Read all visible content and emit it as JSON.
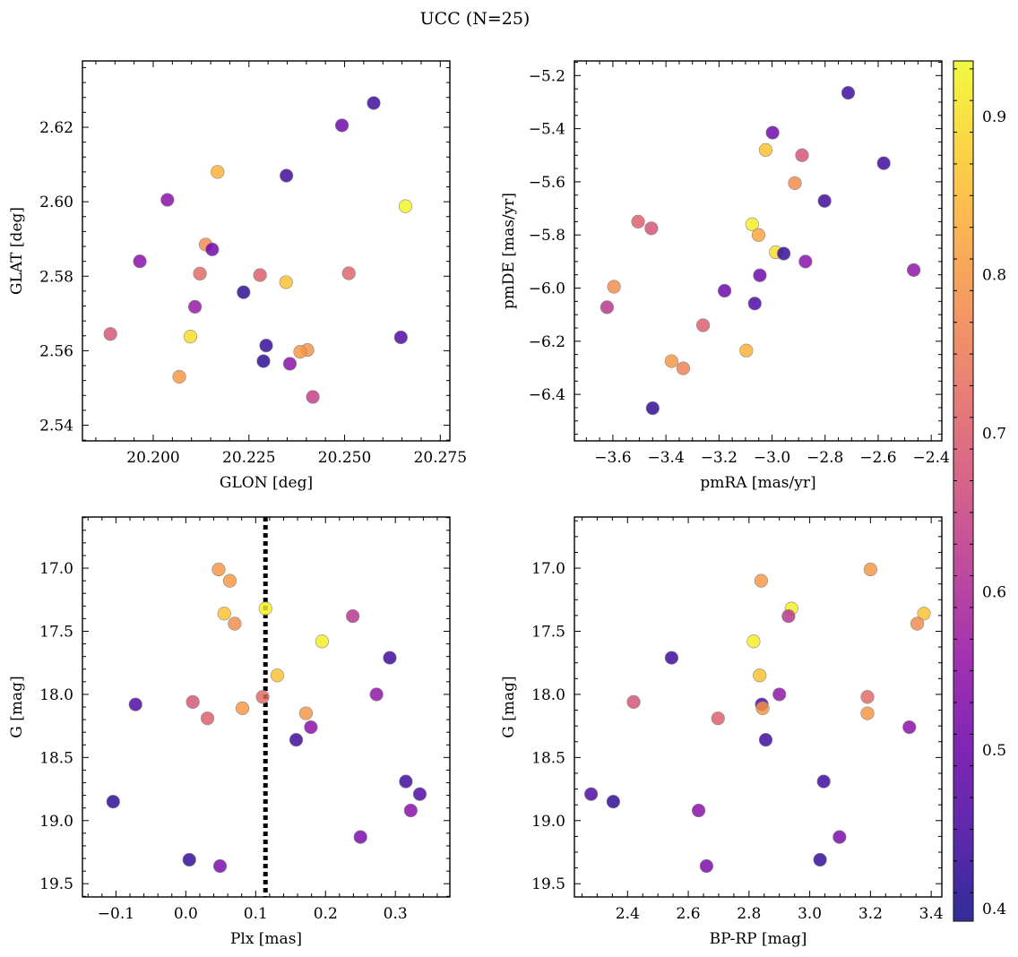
{
  "title": "UCC (N=25)",
  "chart_data": [
    {
      "type": "scatter",
      "panel": "top-left",
      "xlabel": "GLON [deg]",
      "ylabel": "GLAT [deg]",
      "xlim": [
        20.1815,
        20.2775
      ],
      "ylim": [
        2.5358,
        2.6378
      ],
      "xticks": [
        20.2,
        20.225,
        20.25,
        20.275
      ],
      "xtick_labels": [
        "20.200",
        "20.225",
        "20.250",
        "20.275"
      ],
      "yticks": [
        2.54,
        2.56,
        2.58,
        2.6,
        2.62
      ],
      "ytick_labels": [
        "2.54",
        "2.56",
        "2.58",
        "2.60",
        "2.62"
      ],
      "x": [
        20.2576,
        20.2493,
        20.2348,
        20.2037,
        20.2168,
        20.2659,
        20.1965,
        20.2137,
        20.2154,
        20.2122,
        20.2279,
        20.2511,
        20.2347,
        20.2236,
        20.2109,
        20.1888,
        20.2097,
        20.2647,
        20.2295,
        20.2403,
        20.2384,
        20.2288,
        20.2068,
        20.2357,
        20.2417
      ],
      "y": [
        2.6265,
        2.6205,
        2.607,
        2.6005,
        2.608,
        2.5988,
        2.584,
        2.5885,
        2.5872,
        2.5807,
        2.5803,
        2.5808,
        2.5784,
        2.5757,
        2.5718,
        2.5645,
        2.5638,
        2.5636,
        2.5614,
        2.5602,
        2.5597,
        2.5572,
        2.553,
        2.5565,
        2.5476
      ],
      "c": [
        0.44,
        0.5,
        0.44,
        0.54,
        0.84,
        0.93,
        0.54,
        0.78,
        0.5,
        0.72,
        0.7,
        0.71,
        0.86,
        0.42,
        0.56,
        0.68,
        0.9,
        0.46,
        0.43,
        0.79,
        0.8,
        0.42,
        0.8,
        0.54,
        0.64
      ]
    },
    {
      "type": "scatter",
      "panel": "top-right",
      "xlabel": "pmRA [mas/yr]",
      "ylabel": "pmDE [mas/yr]",
      "xlim": [
        -3.745,
        -2.36
      ],
      "ylim": [
        -6.575,
        -5.145
      ],
      "xticks": [
        -3.6,
        -3.4,
        -3.2,
        -3.0,
        -2.8,
        -2.6,
        -2.4
      ],
      "xtick_labels": [
        "−3.6",
        "−3.4",
        "−3.2",
        "−3.0",
        "−2.8",
        "−2.6",
        "−2.4"
      ],
      "yticks": [
        -6.4,
        -6.2,
        -6.0,
        -5.8,
        -5.6,
        -5.4,
        -5.2
      ],
      "ytick_labels": [
        "−6.4",
        "−6.2",
        "−6.0",
        "−5.8",
        "−5.6",
        "−5.4",
        "−5.2"
      ],
      "x": [
        -2.713,
        -2.998,
        -3.024,
        -2.887,
        -2.579,
        -2.914,
        -2.802,
        -3.505,
        -3.455,
        -3.075,
        -3.051,
        -2.986,
        -2.956,
        -2.874,
        -3.046,
        -3.179,
        -2.466,
        -3.596,
        -3.065,
        -3.622,
        -3.26,
        -3.097,
        -3.379,
        -3.335,
        -3.45
      ],
      "y": [
        -5.265,
        -5.415,
        -5.48,
        -5.5,
        -5.53,
        -5.605,
        -5.672,
        -5.75,
        -5.775,
        -5.76,
        -5.8,
        -5.865,
        -5.87,
        -5.9,
        -5.952,
        -6.01,
        -5.932,
        -5.995,
        -6.058,
        -6.072,
        -6.14,
        -6.235,
        -6.275,
        -6.302,
        -6.452
      ],
      "c": [
        0.44,
        0.5,
        0.86,
        0.68,
        0.44,
        0.78,
        0.44,
        0.7,
        0.68,
        0.92,
        0.82,
        0.9,
        0.43,
        0.54,
        0.5,
        0.5,
        0.55,
        0.78,
        0.46,
        0.62,
        0.7,
        0.84,
        0.8,
        0.76,
        0.42
      ]
    },
    {
      "type": "scatter",
      "panel": "bottom-left",
      "xlabel": "Plx [mas]",
      "ylabel": "G [mag]",
      "xlim": [
        -0.148,
        0.378
      ],
      "ylim": [
        19.605,
        16.595
      ],
      "y_inverted": true,
      "xticks": [
        -0.1,
        0.0,
        0.1,
        0.2,
        0.3
      ],
      "xtick_labels": [
        "−0.1",
        "0.0",
        "0.1",
        "0.2",
        "0.3"
      ],
      "yticks": [
        17.0,
        17.5,
        18.0,
        18.5,
        19.0,
        19.5
      ],
      "ytick_labels": [
        "17.0",
        "17.5",
        "18.0",
        "18.5",
        "19.0",
        "19.5"
      ],
      "vline_x": 0.114,
      "x": [
        0.047,
        0.063,
        0.114,
        0.055,
        0.239,
        0.07,
        0.195,
        0.292,
        0.131,
        0.273,
        -0.072,
        0.01,
        0.081,
        0.11,
        0.031,
        0.172,
        0.179,
        0.158,
        0.315,
        0.335,
        -0.104,
        0.322,
        0.25,
        0.005,
        0.049
      ],
      "y": [
        17.01,
        17.1,
        17.32,
        17.36,
        17.38,
        17.44,
        17.58,
        17.71,
        17.85,
        18.0,
        18.08,
        18.06,
        18.11,
        18.02,
        18.19,
        18.15,
        18.26,
        18.36,
        18.69,
        18.79,
        18.85,
        18.92,
        19.13,
        19.31,
        19.36
      ],
      "c": [
        0.8,
        0.8,
        0.92,
        0.86,
        0.62,
        0.78,
        0.92,
        0.44,
        0.86,
        0.55,
        0.46,
        0.68,
        0.8,
        0.72,
        0.7,
        0.8,
        0.54,
        0.44,
        0.44,
        0.46,
        0.42,
        0.54,
        0.52,
        0.43,
        0.52
      ]
    },
    {
      "type": "scatter",
      "panel": "bottom-right",
      "xlabel": "BP-RP [mag]",
      "ylabel": "G [mag]",
      "xlim": [
        2.225,
        3.435
      ],
      "ylim": [
        19.605,
        16.595
      ],
      "y_inverted": true,
      "xticks": [
        2.4,
        2.6,
        2.8,
        3.0,
        3.2,
        3.4
      ],
      "xtick_labels": [
        "2.4",
        "2.6",
        "2.8",
        "3.0",
        "3.2",
        "3.4"
      ],
      "yticks": [
        17.0,
        17.5,
        18.0,
        18.5,
        19.0,
        19.5
      ],
      "ytick_labels": [
        "17.0",
        "17.5",
        "18.0",
        "18.5",
        "19.0",
        "19.5"
      ],
      "x": [
        3.2,
        2.84,
        2.94,
        3.376,
        2.93,
        3.354,
        2.815,
        2.545,
        2.835,
        2.9,
        2.842,
        2.42,
        2.845,
        3.19,
        2.698,
        3.19,
        3.328,
        2.855,
        3.046,
        2.28,
        2.353,
        2.634,
        3.098,
        3.034,
        2.66
      ],
      "y": [
        17.01,
        17.1,
        17.32,
        17.36,
        17.38,
        17.44,
        17.58,
        17.71,
        17.85,
        18.0,
        18.08,
        18.06,
        18.11,
        18.02,
        18.19,
        18.15,
        18.26,
        18.36,
        18.69,
        18.79,
        18.85,
        18.92,
        19.13,
        19.31,
        19.36
      ],
      "c": [
        0.8,
        0.8,
        0.92,
        0.86,
        0.62,
        0.78,
        0.92,
        0.44,
        0.86,
        0.55,
        0.46,
        0.68,
        0.8,
        0.72,
        0.7,
        0.8,
        0.54,
        0.44,
        0.44,
        0.46,
        0.42,
        0.54,
        0.52,
        0.43,
        0.52
      ]
    }
  ],
  "colorbar": {
    "colormap": "plasma",
    "range": [
      0.392,
      0.935
    ],
    "ticks": [
      0.4,
      0.5,
      0.6,
      0.7,
      0.8,
      0.9
    ],
    "tick_labels": [
      "0.4",
      "0.5",
      "0.6",
      "0.7",
      "0.8",
      "0.9"
    ]
  }
}
